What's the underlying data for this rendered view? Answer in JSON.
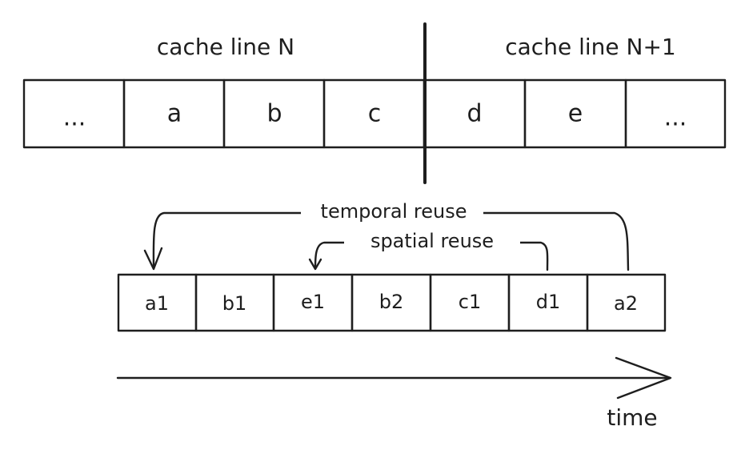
{
  "headers": {
    "left": "cache line N",
    "right": "cache line N+1"
  },
  "memory_cells": [
    "...",
    "a",
    "b",
    "c",
    "d",
    "e",
    "..."
  ],
  "access_sequence": [
    "a1",
    "b1",
    "e1",
    "b2",
    "c1",
    "d1",
    "a2"
  ],
  "labels": {
    "temporal": "temporal reuse",
    "spatial": "spatial reuse",
    "time": "time"
  }
}
